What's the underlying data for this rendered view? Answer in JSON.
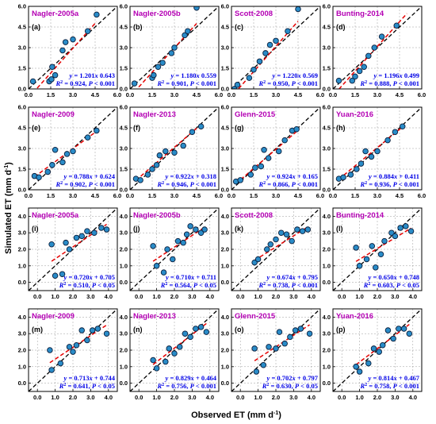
{
  "figure": {
    "ylabel": "Simulated ET (mm d",
    "ylabel_sup": "-1",
    "ylabel_close": ")",
    "xlabel": "Observed ET (mm d",
    "xlabel_sup": "-1",
    "xlabel_close": ")"
  },
  "colors": {
    "title": "#b400b4",
    "equation": "#0000e6",
    "point_fill": "#2a8cc8",
    "fit_line": "#e60000",
    "one_to_one": "#000000"
  },
  "chart_data": [
    {
      "type": "scatter",
      "title": "Nagler-2005a",
      "panel": "(a)",
      "xlim": [
        0,
        6
      ],
      "ylim": [
        0,
        6
      ],
      "ticks": [
        "0.0",
        "1.5",
        "3.0",
        "4.5",
        "6.0"
      ],
      "slope": 1.201,
      "intercept": -0.643,
      "eq_slope": "1.201",
      "eq_sign": "",
      "eq_intercept": "0.643",
      "eq_r2": "0.924",
      "eq_p": "0.001",
      "eq_pop": "<",
      "x": [
        0.3,
        1.4,
        1.55,
        1.8,
        1.6,
        2.3,
        2.5,
        3.0,
        4.0,
        4.6
      ],
      "y": [
        0.55,
        0.55,
        0.7,
        1.0,
        1.6,
        2.8,
        3.4,
        3.6,
        4.2,
        5.4
      ]
    },
    {
      "type": "scatter",
      "title": "Nagler-2005b",
      "panel": "(b)",
      "xlim": [
        0,
        6
      ],
      "ylim": [
        0,
        6
      ],
      "ticks": [
        "0.0",
        "1.5",
        "3.0",
        "4.5",
        "6.0"
      ],
      "slope": 1.18,
      "intercept": -0.559,
      "eq_slope": "1.180",
      "eq_sign": "",
      "eq_intercept": "0.559",
      "eq_r2": "0.901",
      "eq_p": "0.001",
      "eq_pop": "<",
      "x": [
        0.3,
        1.5,
        1.6,
        1.9,
        2.2,
        2.8,
        3.0,
        3.7,
        3.9,
        4.5
      ],
      "y": [
        0.4,
        0.8,
        1.0,
        1.6,
        1.9,
        2.6,
        3.0,
        3.9,
        4.2,
        5.9
      ]
    },
    {
      "type": "scatter",
      "title": "Scott-2008",
      "panel": "(c)",
      "xlim": [
        0,
        6
      ],
      "ylim": [
        0,
        6
      ],
      "ticks": [
        "0.0",
        "1.5",
        "3.0",
        "4.5",
        "6.0"
      ],
      "slope": 1.22,
      "intercept": -0.569,
      "eq_slope": "1.220",
      "eq_sign": "",
      "eq_intercept": "0.569",
      "eq_r2": "0.950",
      "eq_p": "0.001",
      "eq_pop": "<",
      "x": [
        0.2,
        0.4,
        1.2,
        1.5,
        1.9,
        2.3,
        2.6,
        3.0,
        3.8,
        4.5
      ],
      "y": [
        0.0,
        0.3,
        0.8,
        1.4,
        2.0,
        2.6,
        3.2,
        3.5,
        4.2,
        5.8
      ]
    },
    {
      "type": "scatter",
      "title": "Bunting-2014",
      "panel": "(d)",
      "xlim": [
        0,
        6
      ],
      "ylim": [
        0,
        6
      ],
      "ticks": [
        "0.0",
        "1.5",
        "3.0",
        "4.5",
        "6.0"
      ],
      "slope": 1.196,
      "intercept": -0.499,
      "eq_slope": "1.196",
      "eq_sign": "",
      "eq_intercept": "0.499",
      "eq_r2": "0.888",
      "eq_p": "0.001",
      "eq_pop": "<",
      "x": [
        0.4,
        1.3,
        1.5,
        1.8,
        2.1,
        2.4,
        2.8,
        3.3,
        4.3,
        5.0
      ],
      "y": [
        0.6,
        0.6,
        0.9,
        1.3,
        1.6,
        2.4,
        3.0,
        3.8,
        4.6,
        6.2
      ]
    },
    {
      "type": "scatter",
      "title": "Nagler-2009",
      "panel": "(e)",
      "xlim": [
        0,
        6
      ],
      "ylim": [
        0,
        6
      ],
      "ticks": [
        "0.0",
        "1.5",
        "3.0",
        "4.5",
        "6.0"
      ],
      "slope": 0.788,
      "intercept": 0.624,
      "eq_slope": "0.788",
      "eq_sign": "+",
      "eq_intercept": "0.624",
      "eq_r2": "0.902",
      "eq_p": "0.001",
      "eq_pop": "<",
      "x": [
        0.4,
        0.7,
        1.3,
        1.6,
        1.8,
        2.3,
        2.6,
        3.0,
        4.0,
        4.6
      ],
      "y": [
        1.0,
        0.9,
        1.3,
        1.8,
        2.9,
        2.0,
        2.6,
        2.8,
        3.8,
        4.3
      ]
    },
    {
      "type": "scatter",
      "title": "Nagler-2013",
      "panel": "(f)",
      "xlim": [
        0,
        6
      ],
      "ylim": [
        0,
        6
      ],
      "ticks": [
        "0.0",
        "1.5",
        "3.0",
        "4.5",
        "6.0"
      ],
      "slope": 0.922,
      "intercept": 0.318,
      "eq_slope": "0.922",
      "eq_sign": "+",
      "eq_intercept": "0.318",
      "eq_r2": "0.946",
      "eq_p": "0.001",
      "eq_pop": "<",
      "x": [
        0.4,
        0.7,
        1.2,
        1.5,
        1.8,
        2.0,
        2.4,
        3.0,
        3.6,
        4.2,
        4.8
      ],
      "y": [
        0.8,
        0.7,
        1.1,
        1.5,
        1.8,
        2.5,
        2.8,
        2.7,
        3.2,
        4.2,
        4.6
      ]
    },
    {
      "type": "scatter",
      "title": "Glenn-2015",
      "panel": "(g)",
      "xlim": [
        0,
        6
      ],
      "ylim": [
        0,
        6
      ],
      "ticks": [
        "0.0",
        "1.5",
        "3.0",
        "4.5",
        "6.0"
      ],
      "slope": 0.924,
      "intercept": 0.165,
      "eq_slope": "0.924",
      "eq_sign": "+",
      "eq_intercept": "0.165",
      "eq_r2": "0.866",
      "eq_p": "0.001",
      "eq_pop": "<",
      "x": [
        0.3,
        0.6,
        1.3,
        1.6,
        2.0,
        2.2,
        2.5,
        3.2,
        3.6,
        4.1,
        4.4
      ],
      "y": [
        0.6,
        0.7,
        1.1,
        1.6,
        1.7,
        2.9,
        2.3,
        2.8,
        3.6,
        4.3,
        4.4
      ]
    },
    {
      "type": "scatter",
      "title": "Yuan-2016",
      "panel": "(h)",
      "xlim": [
        0,
        6
      ],
      "ylim": [
        0,
        6
      ],
      "ticks": [
        "0.0",
        "1.5",
        "3.0",
        "4.5",
        "6.0"
      ],
      "slope": 0.884,
      "intercept": 0.411,
      "eq_slope": "0.884",
      "eq_sign": "+",
      "eq_intercept": "0.411",
      "eq_r2": "0.936",
      "eq_p": "0.001",
      "eq_pop": "<",
      "x": [
        0.4,
        0.7,
        1.2,
        1.6,
        1.9,
        2.2,
        2.6,
        3.0,
        3.7,
        4.2,
        4.7
      ],
      "y": [
        0.8,
        0.9,
        1.1,
        1.5,
        1.9,
        2.8,
        2.4,
        2.8,
        3.6,
        4.2,
        4.6
      ]
    },
    {
      "type": "scatter",
      "title": "Nagler-2005a",
      "panel": "(i)",
      "xlim": [
        -0.5,
        4.5
      ],
      "ylim": [
        -0.5,
        4.5
      ],
      "ticks": [
        "0.0",
        "1.0",
        "2.0",
        "3.0",
        "4.0"
      ],
      "slope": 0.72,
      "intercept": 0.705,
      "eq_slope": "0.720",
      "eq_sign": "+",
      "eq_intercept": "0.705",
      "eq_r2": "0.510",
      "eq_p": "0.05",
      "eq_pop": "<",
      "x": [
        0.8,
        1.0,
        1.4,
        1.6,
        1.8,
        2.2,
        2.5,
        2.8,
        3.2,
        3.6,
        3.9
      ],
      "y": [
        2.3,
        0.4,
        0.5,
        2.4,
        2.0,
        2.7,
        2.8,
        3.1,
        3.0,
        3.3,
        3.2
      ]
    },
    {
      "type": "scatter",
      "title": "Nagler-2005b",
      "panel": "(j)",
      "xlim": [
        -0.5,
        4.5
      ],
      "ylim": [
        -0.5,
        4.5
      ],
      "ticks": [
        "0.0",
        "1.0",
        "2.0",
        "3.0",
        "4.0"
      ],
      "slope": 0.71,
      "intercept": 0.711,
      "eq_slope": "0.710",
      "eq_sign": "+",
      "eq_intercept": "0.711",
      "eq_r2": "0.564",
      "eq_p": "0.05",
      "eq_pop": "<",
      "x": [
        0.8,
        1.0,
        1.4,
        1.6,
        1.9,
        2.2,
        2.5,
        2.7,
        2.9,
        3.2,
        3.5,
        3.7
      ],
      "y": [
        2.2,
        1.0,
        0.6,
        2.0,
        1.4,
        2.5,
        2.4,
        2.9,
        3.4,
        3.2,
        3.0,
        3.2
      ]
    },
    {
      "type": "scatter",
      "title": "Scott-2008",
      "panel": "(k)",
      "xlim": [
        -0.5,
        4.5
      ],
      "ylim": [
        -0.5,
        4.5
      ],
      "ticks": [
        "0.0",
        "1.0",
        "2.0",
        "3.0",
        "4.0"
      ],
      "slope": 0.674,
      "intercept": 0.795,
      "eq_slope": "0.674",
      "eq_sign": "+",
      "eq_intercept": "0.795",
      "eq_r2": "0.738",
      "eq_p": "0.001",
      "eq_pop": "<",
      "x": [
        0.8,
        1.0,
        1.5,
        1.7,
        2.0,
        2.3,
        2.6,
        2.9,
        3.2,
        3.5,
        3.8
      ],
      "y": [
        1.2,
        1.4,
        2.0,
        2.3,
        2.6,
        3.0,
        2.9,
        2.5,
        3.2,
        3.1,
        3.2
      ]
    },
    {
      "type": "scatter",
      "title": "Bunting-2014",
      "panel": "(l)",
      "xlim": [
        -0.5,
        4.5
      ],
      "ylim": [
        -0.5,
        4.5
      ],
      "ticks": [
        "0.0",
        "1.0",
        "2.0",
        "3.0",
        "4.0"
      ],
      "slope": 0.65,
      "intercept": 0.748,
      "eq_slope": "0.650",
      "eq_sign": "+",
      "eq_intercept": "0.748",
      "eq_r2": "0.603",
      "eq_p": "0.05",
      "eq_pop": "<",
      "x": [
        0.8,
        1.0,
        1.4,
        1.7,
        1.9,
        2.2,
        2.4,
        2.8,
        3.0,
        3.3,
        3.6,
        3.9
      ],
      "y": [
        2.1,
        1.0,
        1.4,
        2.2,
        0.9,
        1.7,
        2.5,
        3.0,
        2.8,
        3.3,
        3.4,
        3.1
      ]
    },
    {
      "type": "scatter",
      "title": "Nagler-2009",
      "panel": "(m)",
      "xlim": [
        -0.5,
        4.5
      ],
      "ylim": [
        -0.5,
        4.5
      ],
      "ticks": [
        "0.0",
        "1.0",
        "2.0",
        "3.0",
        "4.0"
      ],
      "slope": 0.713,
      "intercept": 0.744,
      "eq_slope": "0.713",
      "eq_sign": "+",
      "eq_intercept": "0.744",
      "eq_r2": "0.641",
      "eq_p": "0.05",
      "eq_pop": "<",
      "x": [
        0.7,
        0.8,
        1.3,
        1.8,
        2.0,
        2.2,
        2.5,
        2.8,
        3.1,
        3.4,
        3.9
      ],
      "y": [
        2.0,
        0.8,
        1.2,
        2.2,
        1.9,
        2.3,
        3.2,
        2.6,
        3.2,
        3.3,
        3.0
      ]
    },
    {
      "type": "scatter",
      "title": "Nagler-2013",
      "panel": "(n)",
      "xlim": [
        -0.5,
        4.5
      ],
      "ylim": [
        -0.5,
        4.5
      ],
      "ticks": [
        "0.0",
        "1.0",
        "2.0",
        "3.0",
        "4.0"
      ],
      "slope": 0.829,
      "intercept": 0.464,
      "eq_slope": "0.829",
      "eq_sign": "+",
      "eq_intercept": "0.464",
      "eq_r2": "0.756",
      "eq_p": "0.001",
      "eq_pop": "<",
      "x": [
        0.8,
        1.0,
        1.5,
        1.7,
        2.0,
        2.3,
        2.6,
        2.9,
        3.2,
        3.5,
        3.8
      ],
      "y": [
        1.4,
        0.9,
        1.3,
        2.1,
        1.8,
        2.2,
        3.0,
        2.8,
        3.3,
        3.4,
        3.1
      ]
    },
    {
      "type": "scatter",
      "title": "Glenn-2015",
      "panel": "(o)",
      "xlim": [
        -0.5,
        4.5
      ],
      "ylim": [
        -0.5,
        4.5
      ],
      "ticks": [
        "0.0",
        "1.0",
        "2.0",
        "3.0",
        "4.0"
      ],
      "slope": 0.702,
      "intercept": 0.797,
      "eq_slope": "0.702",
      "eq_sign": "+",
      "eq_intercept": "0.797",
      "eq_r2": "0.630",
      "eq_p": "0.05",
      "eq_pop": "<",
      "x": [
        0.8,
        0.9,
        1.3,
        1.6,
        2.0,
        2.2,
        2.5,
        2.8,
        3.1,
        3.4,
        3.9
      ],
      "y": [
        2.1,
        0.7,
        1.1,
        2.2,
        2.1,
        3.1,
        2.4,
        2.8,
        3.2,
        3.3,
        3.0
      ]
    },
    {
      "type": "scatter",
      "title": "Yuan-2016",
      "panel": "(p)",
      "xlim": [
        -0.5,
        4.5
      ],
      "ylim": [
        -0.5,
        4.5
      ],
      "ticks": [
        "0.0",
        "1.0",
        "2.0",
        "3.0",
        "4.0"
      ],
      "slope": 0.814,
      "intercept": 0.467,
      "eq_slope": "0.814",
      "eq_sign": "+",
      "eq_intercept": "0.467",
      "eq_r2": "0.758",
      "eq_p": "0.001",
      "eq_pop": "<",
      "x": [
        0.8,
        1.0,
        1.5,
        1.8,
        2.1,
        2.3,
        2.6,
        2.9,
        3.2,
        3.5,
        3.8
      ],
      "y": [
        1.0,
        0.7,
        1.2,
        2.1,
        1.9,
        2.3,
        3.2,
        2.7,
        3.3,
        3.3,
        3.0
      ]
    }
  ]
}
